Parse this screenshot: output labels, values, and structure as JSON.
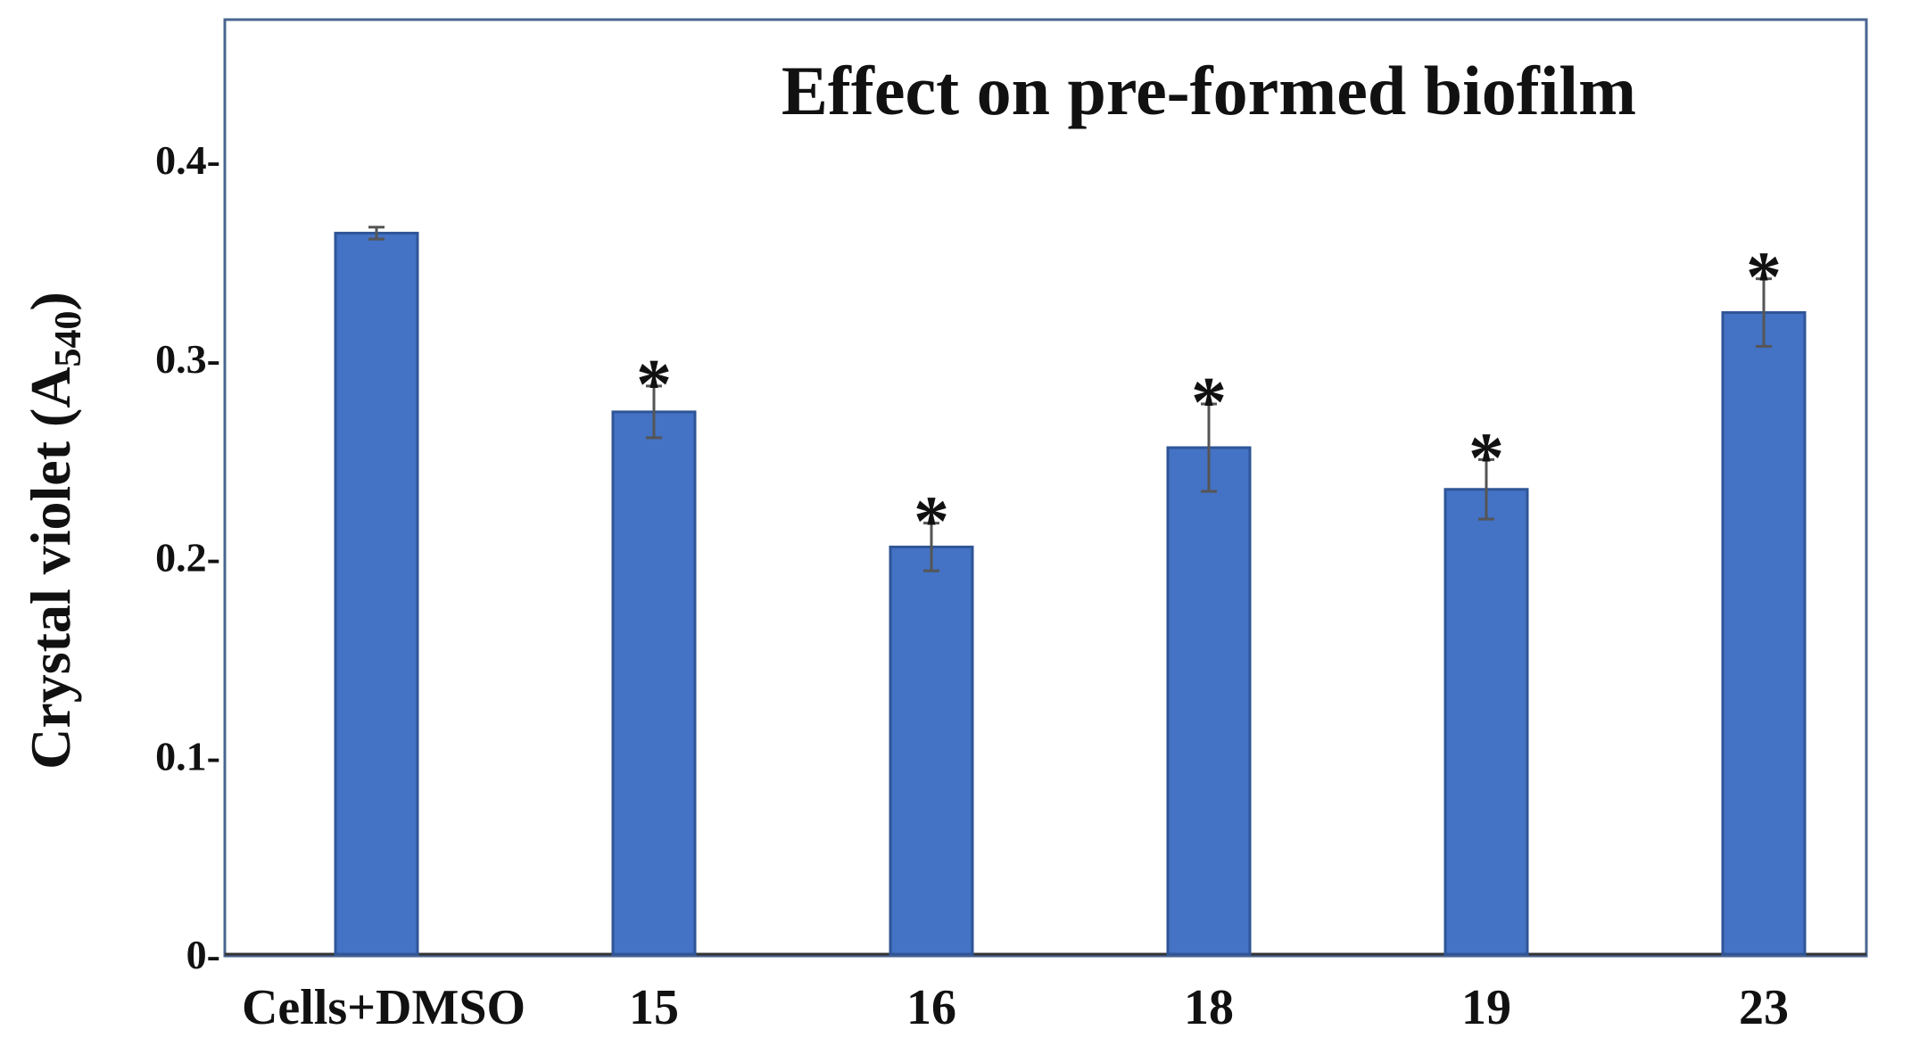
{
  "chart_data": {
    "type": "bar",
    "title": "Effect on pre-formed biofilm",
    "ylabel": {
      "main": "Crystal violet (A",
      "subscript": "540",
      "close": ")"
    },
    "categories": [
      "Cells+DMSO",
      "15",
      "16",
      "18",
      "19",
      "23"
    ],
    "values": [
      0.363,
      0.273,
      0.205,
      0.255,
      0.234,
      0.323
    ],
    "errors": [
      0.003,
      0.013,
      0.012,
      0.022,
      0.015,
      0.017
    ],
    "significance": [
      "",
      "*",
      "*",
      "*",
      "*",
      "*"
    ],
    "yticks": [
      {
        "value": 0,
        "label": "0-"
      },
      {
        "value": 0.1,
        "label": "0.1-"
      },
      {
        "value": 0.2,
        "label": "0.2-"
      },
      {
        "value": 0.3,
        "label": "0.3-"
      },
      {
        "value": 0.4,
        "label": "0.4-"
      }
    ],
    "ylim": [
      0,
      0.4
    ],
    "grid": false,
    "bar_color": "#4472C4",
    "bar_edge_color": "#2F5597",
    "errorbar_color": "#555555",
    "frame_color": "#4A6591"
  }
}
